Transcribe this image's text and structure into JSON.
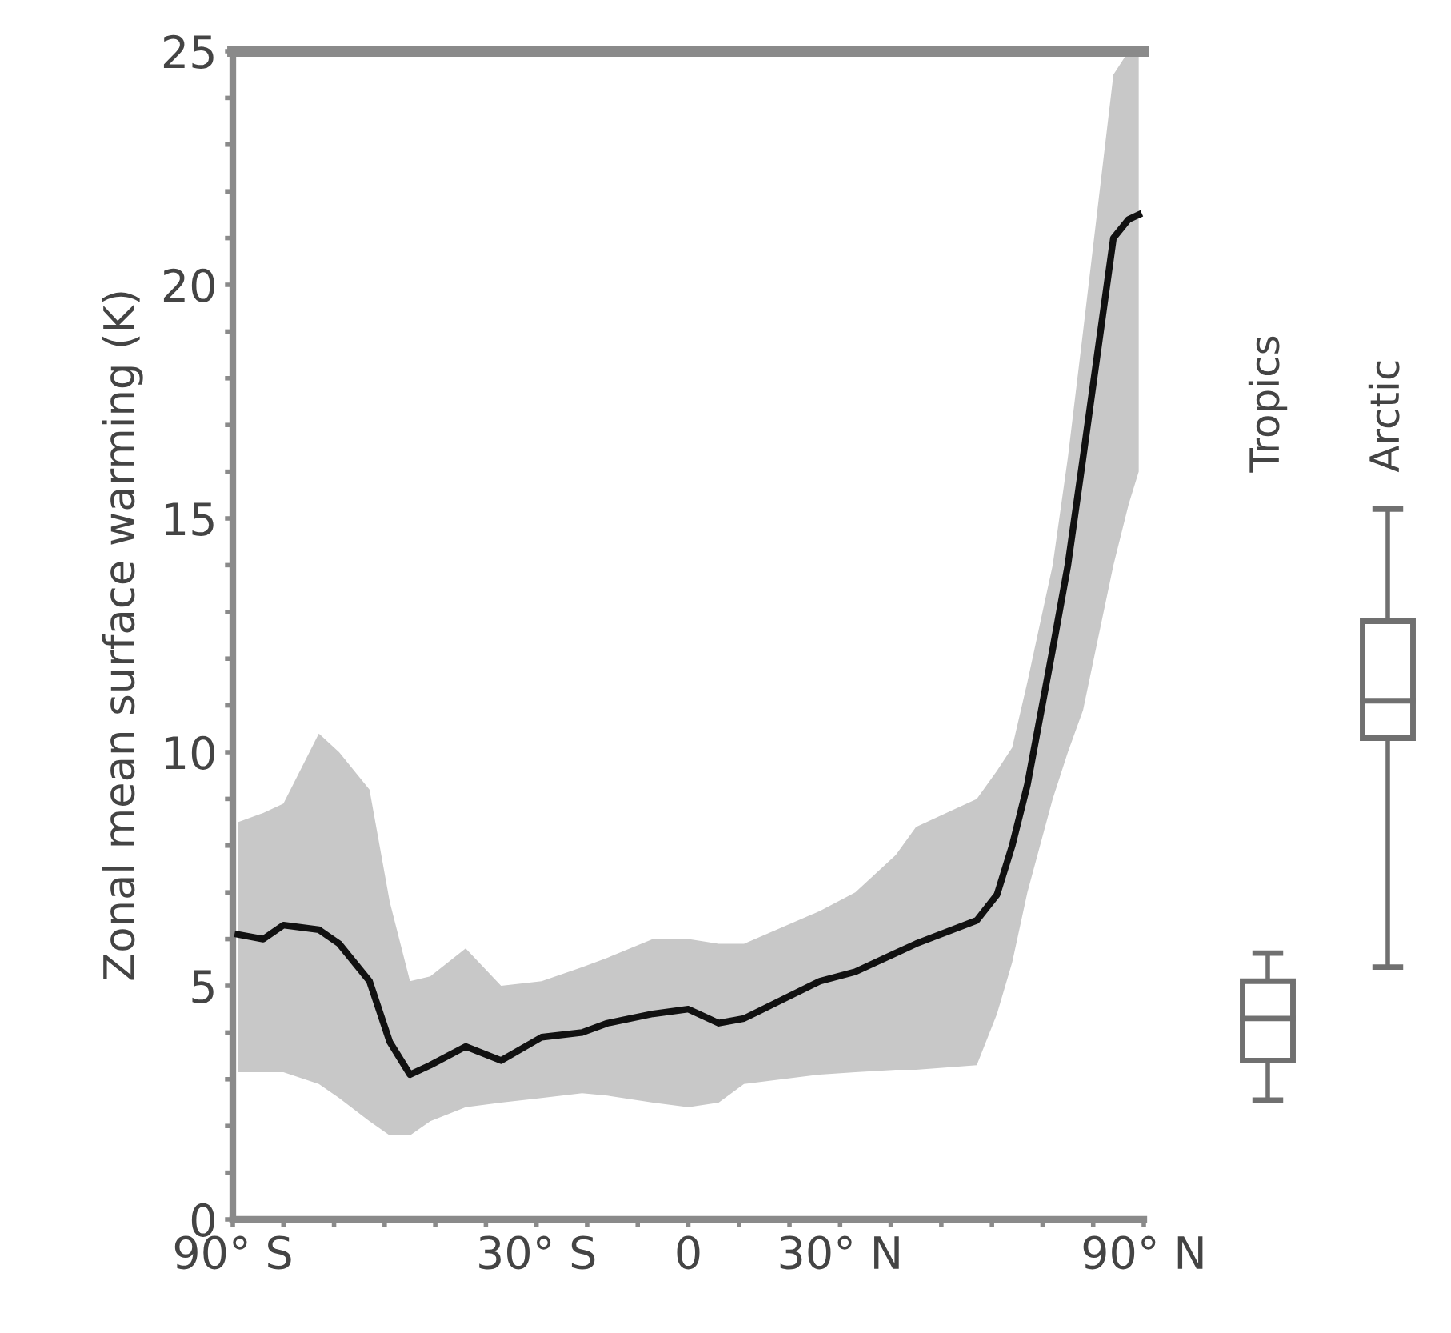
{
  "chart_data": [
    {
      "type": "line",
      "ylabel": "Zonal mean surface warming (K)",
      "x": [
        -89,
        -84,
        -80,
        -73,
        -69,
        -63,
        -59,
        -55,
        -51,
        -44,
        -37,
        -29,
        -21,
        -16,
        -7,
        0,
        6,
        11,
        26,
        33,
        41,
        45,
        57,
        61,
        64,
        67,
        72,
        75,
        78,
        84,
        87,
        89
      ],
      "series": [
        {
          "color": "#111111",
          "values": [
            6.1,
            6.0,
            6.3,
            6.2,
            5.9,
            5.1,
            3.8,
            3.1,
            3.3,
            3.7,
            3.4,
            3.9,
            4.0,
            4.2,
            4.4,
            4.5,
            4.2,
            4.3,
            5.1,
            5.3,
            5.7,
            5.9,
            6.4,
            6.95,
            8.0,
            9.3,
            12.2,
            14.0,
            16.3,
            21.0,
            21.4,
            21.5
          ],
          "lower": [
            3.15,
            3.15,
            3.15,
            2.9,
            2.6,
            2.1,
            1.8,
            1.8,
            2.1,
            2.4,
            2.5,
            2.6,
            2.7,
            2.65,
            2.5,
            2.4,
            2.5,
            2.9,
            3.1,
            3.15,
            3.2,
            3.2,
            3.3,
            4.4,
            5.5,
            7.0,
            9.0,
            10.0,
            10.9,
            14.0,
            15.3,
            16.0
          ],
          "upper": [
            8.5,
            8.7,
            8.9,
            10.4,
            10.0,
            9.2,
            6.8,
            5.1,
            5.2,
            5.8,
            5.0,
            5.1,
            5.4,
            5.6,
            6.0,
            6.0,
            5.9,
            5.9,
            6.6,
            7.0,
            7.8,
            8.4,
            9.0,
            9.6,
            10.1,
            11.5,
            14.0,
            16.3,
            19.0,
            24.5,
            25,
            25
          ]
        }
      ],
      "xlim": [
        -90,
        90
      ],
      "xticks": [
        {
          "value": -90,
          "label": "90° S"
        },
        {
          "value": -80,
          "label": null
        },
        {
          "value": -70,
          "label": null
        },
        {
          "value": -60,
          "label": null
        },
        {
          "value": -50,
          "label": null
        },
        {
          "value": -40,
          "label": null
        },
        {
          "value": -30,
          "label": "30° S"
        },
        {
          "value": -20,
          "label": null
        },
        {
          "value": -10,
          "label": null
        },
        0,
        {
          "value": 10,
          "label": null
        },
        {
          "value": 20,
          "label": null
        },
        {
          "value": 30,
          "label": "30° N"
        },
        {
          "value": 40,
          "label": null
        },
        {
          "value": 50,
          "label": null
        },
        {
          "value": 60,
          "label": null
        },
        {
          "value": 70,
          "label": null
        },
        {
          "value": 80,
          "label": null
        },
        {
          "value": 90,
          "label": "90° N"
        }
      ],
      "ylim": [
        0,
        25
      ],
      "yticks": [
        0,
        {
          "value": 1,
          "label": null
        },
        {
          "value": 2,
          "label": null
        },
        {
          "value": 3,
          "label": null
        },
        {
          "value": 4,
          "label": null
        },
        5,
        {
          "value": 6,
          "label": null
        },
        {
          "value": 7,
          "label": null
        },
        {
          "value": 8,
          "label": null
        },
        {
          "value": 9,
          "label": null
        },
        10,
        {
          "value": 11,
          "label": null
        },
        {
          "value": 12,
          "label": null
        },
        {
          "value": 13,
          "label": null
        },
        {
          "value": 14,
          "label": null
        },
        15,
        {
          "value": 16,
          "label": null
        },
        {
          "value": 17,
          "label": null
        },
        {
          "value": 18,
          "label": null
        },
        {
          "value": 19,
          "label": null
        },
        20,
        {
          "value": 21,
          "label": null
        },
        {
          "value": 22,
          "label": null
        },
        {
          "value": 23,
          "label": null
        },
        {
          "value": 24,
          "label": null
        },
        25
      ],
      "grid": false,
      "legend": false
    },
    {
      "type": "box",
      "categories": [
        "Tropics",
        "Arctic"
      ],
      "color": "#707070",
      "boxes": [
        {
          "low": 2.55,
          "q1": 3.4,
          "median": 4.3,
          "q3": 5.1,
          "high": 5.7
        },
        {
          "low": 5.4,
          "q1": 10.3,
          "median": 11.1,
          "q3": 12.8,
          "high": 15.2
        }
      ],
      "ylim": [
        0,
        25
      ],
      "tick_labels": "x"
    }
  ]
}
